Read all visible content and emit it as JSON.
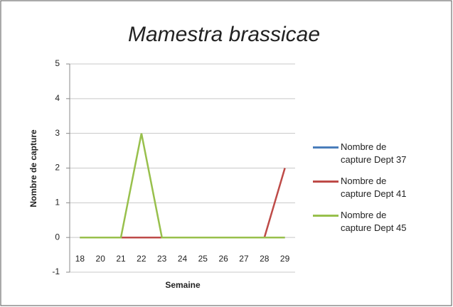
{
  "chart_data": {
    "type": "line",
    "title": "Mamestra brassicae",
    "x_label": "Semaine",
    "y_label": "Nombre de capture",
    "categories": [
      "18",
      "20",
      "21",
      "22",
      "23",
      "24",
      "25",
      "26",
      "27",
      "28",
      "29"
    ],
    "series": [
      {
        "name": "Nombre de capture Dept 37",
        "color": "#4a7ebb",
        "values": [
          0,
          0,
          0,
          0,
          0,
          0,
          0,
          0,
          0,
          0,
          0
        ]
      },
      {
        "name": "Nombre de capture Dept 41",
        "color": "#be4b48",
        "values": [
          0,
          0,
          0,
          0,
          0,
          0,
          0,
          0,
          0,
          0,
          2
        ]
      },
      {
        "name": "Nombre de capture Dept 45",
        "color": "#98c04c",
        "values": [
          0,
          0,
          0,
          3,
          0,
          0,
          0,
          0,
          0,
          0,
          0
        ]
      }
    ],
    "ylim": [
      -1,
      5
    ],
    "yticks": [
      -1,
      0,
      1,
      2,
      3,
      4,
      5
    ],
    "grid": true,
    "legend": "right"
  }
}
